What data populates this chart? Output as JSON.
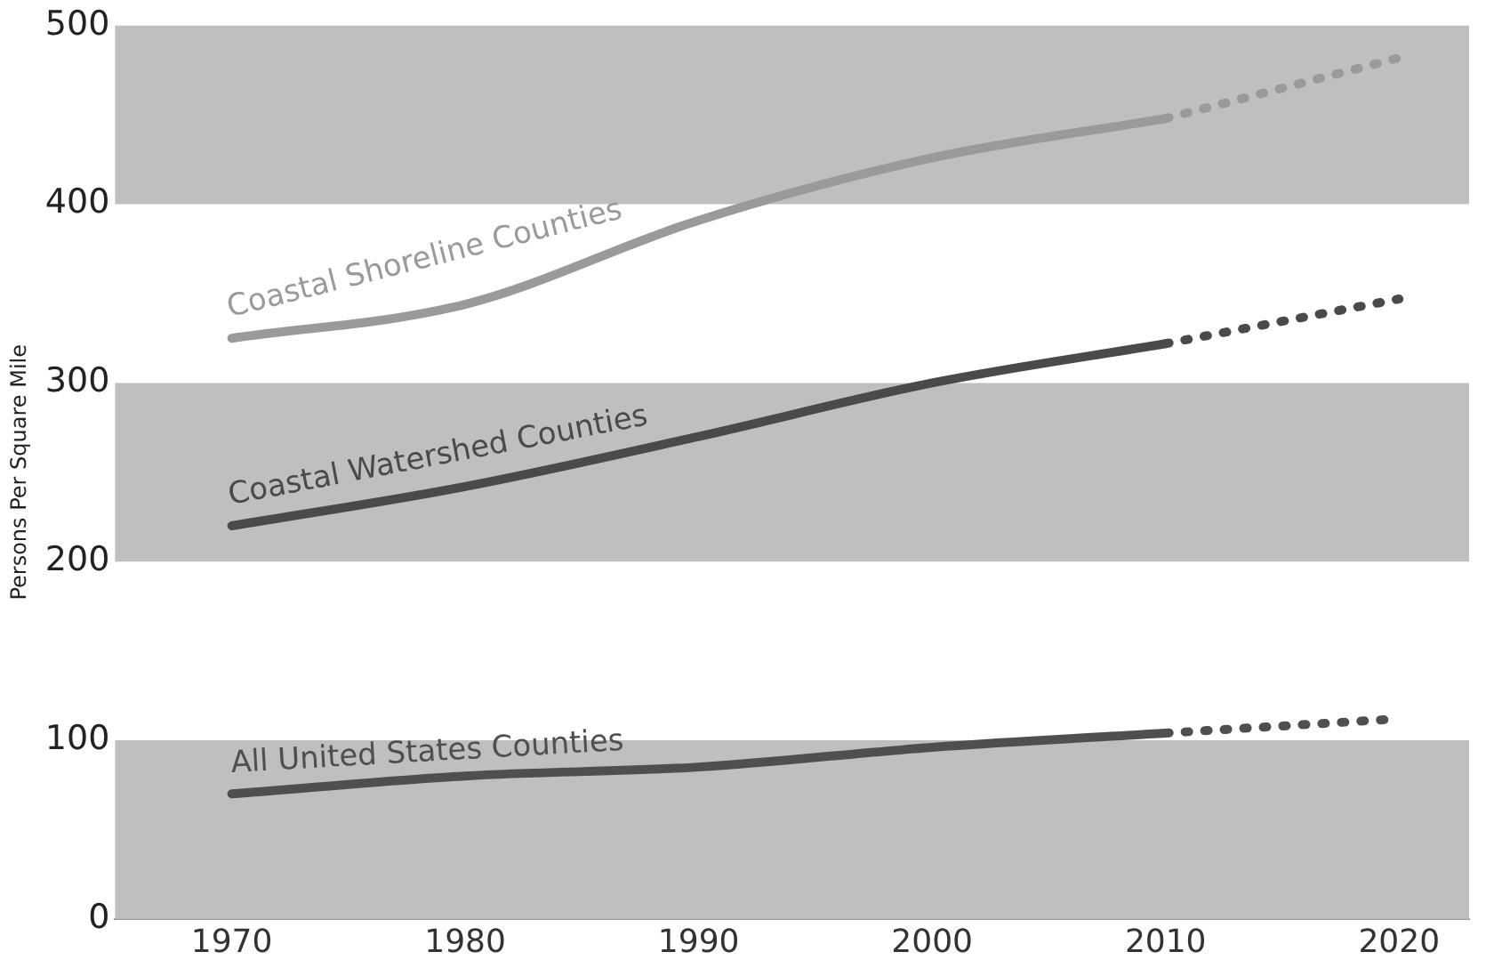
{
  "chart_data": {
    "type": "line",
    "ylabel": "Persons Per Square Mile",
    "ylim": [
      0,
      500
    ],
    "yticks": [
      0,
      100,
      200,
      300,
      400,
      500
    ],
    "xlim": [
      1965,
      2023
    ],
    "xticks": [
      1970,
      1980,
      1990,
      2000,
      2010,
      2020
    ],
    "grid": false,
    "legend": false,
    "marker": "none",
    "bands": [
      {
        "axis": "y",
        "from": 0,
        "to": 100,
        "color": "#bfbfbf"
      },
      {
        "axis": "y",
        "from": 200,
        "to": 300,
        "color": "#bfbfbf"
      },
      {
        "axis": "y",
        "from": 400,
        "to": 500,
        "color": "#bfbfbf"
      }
    ],
    "series": [
      {
        "name": "Coastal Shoreline Counties",
        "color": "#9a9a9a",
        "line_style": "solid",
        "x": [
          1970,
          1980,
          1990,
          2000,
          2010
        ],
        "values": [
          325,
          344,
          391,
          426,
          448
        ]
      },
      {
        "color": "#9a9a9a",
        "line_style": "dotted",
        "x": [
          2010,
          2020
        ],
        "values": [
          448,
          482
        ]
      },
      {
        "name": "Coastal Watershed Counties",
        "color": "#4a4a4a",
        "line_style": "solid",
        "x": [
          1970,
          1980,
          1990,
          2000,
          2010
        ],
        "values": [
          220,
          242,
          270,
          300,
          322
        ]
      },
      {
        "color": "#4a4a4a",
        "line_style": "dotted",
        "x": [
          2010,
          2020
        ],
        "values": [
          322,
          347
        ]
      },
      {
        "name": "All United States Counties",
        "color": "#4f4f4f",
        "line_style": "solid",
        "x": [
          1970,
          1980,
          1990,
          2000,
          2010
        ],
        "values": [
          70,
          80,
          85,
          96,
          104
        ]
      },
      {
        "color": "#4f4f4f",
        "line_style": "dotted",
        "x": [
          2010,
          2020
        ],
        "values": [
          104,
          112
        ]
      }
    ]
  }
}
